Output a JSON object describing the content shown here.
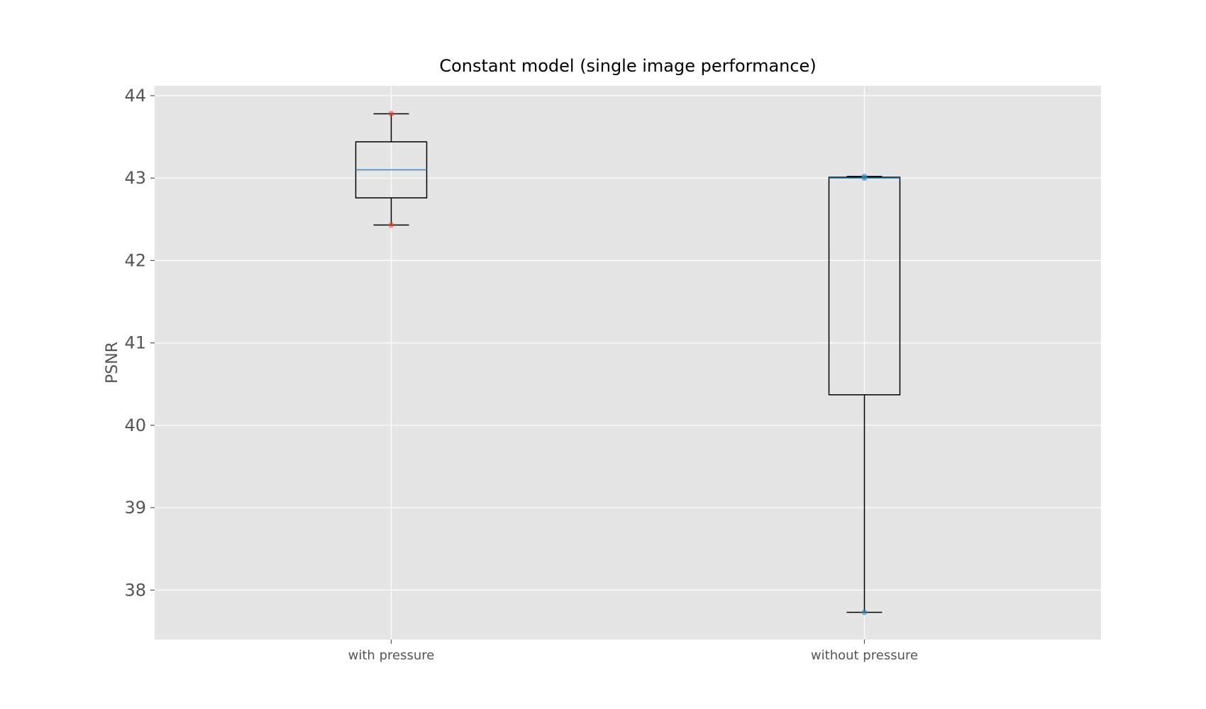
{
  "chart_data": {
    "type": "box",
    "title": "Constant model (single image performance)",
    "xlabel": "",
    "ylabel": "PSNR",
    "categories": [
      "with pressure",
      "without pressure"
    ],
    "ylim": [
      37.4,
      44.12
    ],
    "yticks": [
      38,
      39,
      40,
      41,
      42,
      43,
      44
    ],
    "grid": true,
    "boxes": [
      {
        "category": "with pressure",
        "whisker_low": 42.43,
        "q1": 42.76,
        "median": 43.1,
        "q3": 43.44,
        "whisker_high": 43.78,
        "points": [
          43.78,
          42.43
        ],
        "point_color": "#e24a33"
      },
      {
        "category": "without pressure",
        "whisker_low": 37.73,
        "q1": 40.37,
        "median": 43.0,
        "q3": 43.01,
        "whisker_high": 43.02,
        "points": [
          43.02,
          43.0,
          37.73
        ],
        "point_color": "#348abd"
      }
    ],
    "colors": {
      "plot_background": "#e5e5e5",
      "grid": "#ffffff",
      "box_edge": "#000000",
      "median": "#348abd"
    }
  }
}
